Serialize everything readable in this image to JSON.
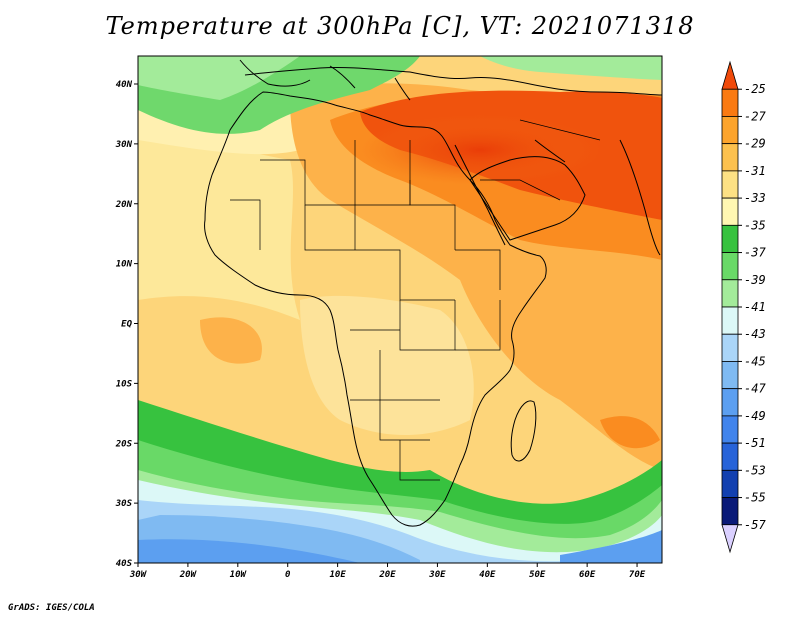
{
  "title": "Temperature at 300hPa [C], VT: 2021071318",
  "footer": "GrADS: IGES/COLA",
  "map": {
    "lon_range": [
      -30,
      75
    ],
    "lat_range": [
      -40,
      45
    ],
    "lon_ticks": [
      "30W",
      "20W",
      "10W",
      "0",
      "10E",
      "20E",
      "30E",
      "40E",
      "50E",
      "60E",
      "70E"
    ],
    "lat_ticks": [
      "40N",
      "30N",
      "20N",
      "10N",
      "EQ",
      "10S",
      "20S",
      "30S",
      "40S"
    ]
  },
  "colorbar": {
    "labels": [
      "-25",
      "-27",
      "-29",
      "-31",
      "-33",
      "-35",
      "-37",
      "-39",
      "-41",
      "-43",
      "-45",
      "-47",
      "-49",
      "-51",
      "-53",
      "-55",
      "-57"
    ],
    "colors": [
      "#f04a0a",
      "#fa7a12",
      "#fda42c",
      "#fdc14e",
      "#fde184",
      "#fff7b2",
      "#37c23f",
      "#69d967",
      "#a3eb9a",
      "#dcf8f7",
      "#aad5f8",
      "#7fbaf2",
      "#5c9ff0",
      "#4184ec",
      "#2763d8",
      "#1240b0",
      "#0a1a78",
      "#dad0ff"
    ]
  }
}
